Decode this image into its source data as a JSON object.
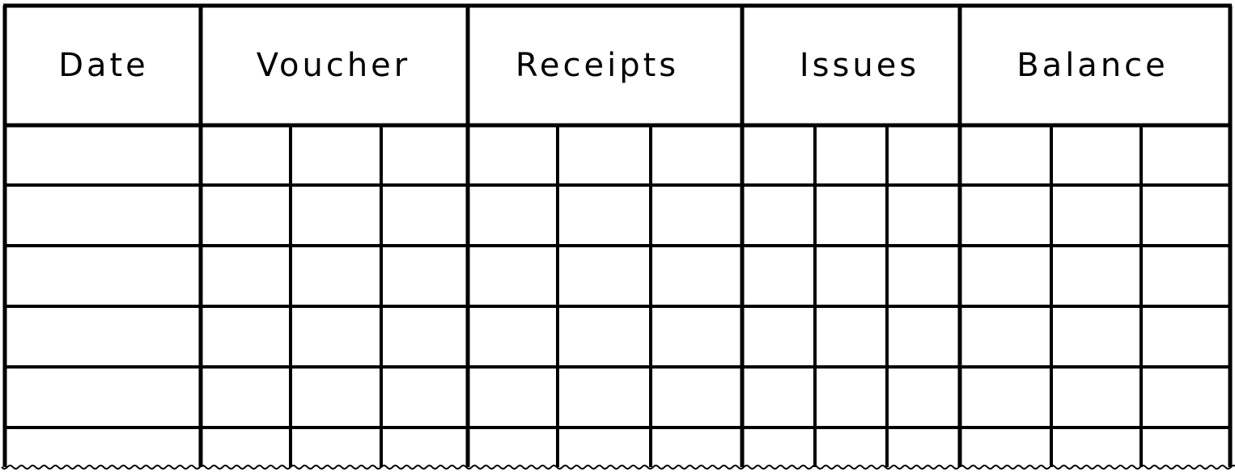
{
  "form": {
    "headers": [
      "Date",
      "Voucher",
      "Receipts",
      "Issues",
      "Balance"
    ],
    "body_rows": 6
  },
  "colors": {
    "ink": "#000000",
    "paper": "#ffffff"
  }
}
